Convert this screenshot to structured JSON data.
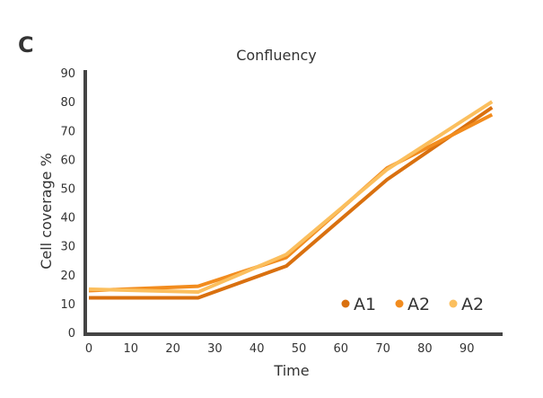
{
  "panel_label": "C",
  "chart_data": {
    "type": "line",
    "title": "Confluency",
    "xlabel": "Time",
    "ylabel": "Cell coverage %",
    "xlim": [
      0,
      90
    ],
    "ylim": [
      0,
      90
    ],
    "xticks": [
      0,
      10,
      20,
      30,
      40,
      50,
      60,
      70,
      80,
      90
    ],
    "yticks": [
      0,
      10,
      20,
      30,
      40,
      50,
      60,
      70,
      80,
      90
    ],
    "grid": false,
    "legend_position": "bottom-right",
    "series": [
      {
        "name": "A1",
        "color": "#D9700F",
        "x": [
          0,
          26,
          47,
          71,
          96
        ],
        "y": [
          12,
          12,
          23,
          53,
          78
        ]
      },
      {
        "name": "A2",
        "color": "#F28C1E",
        "x": [
          0,
          26,
          47,
          71,
          96
        ],
        "y": [
          14.5,
          16,
          26,
          57,
          75.5
        ]
      },
      {
        "name": "A2",
        "color": "#FBBF5E",
        "x": [
          0,
          26,
          47,
          71,
          96
        ],
        "y": [
          15,
          14,
          27,
          56.5,
          80
        ]
      }
    ]
  }
}
